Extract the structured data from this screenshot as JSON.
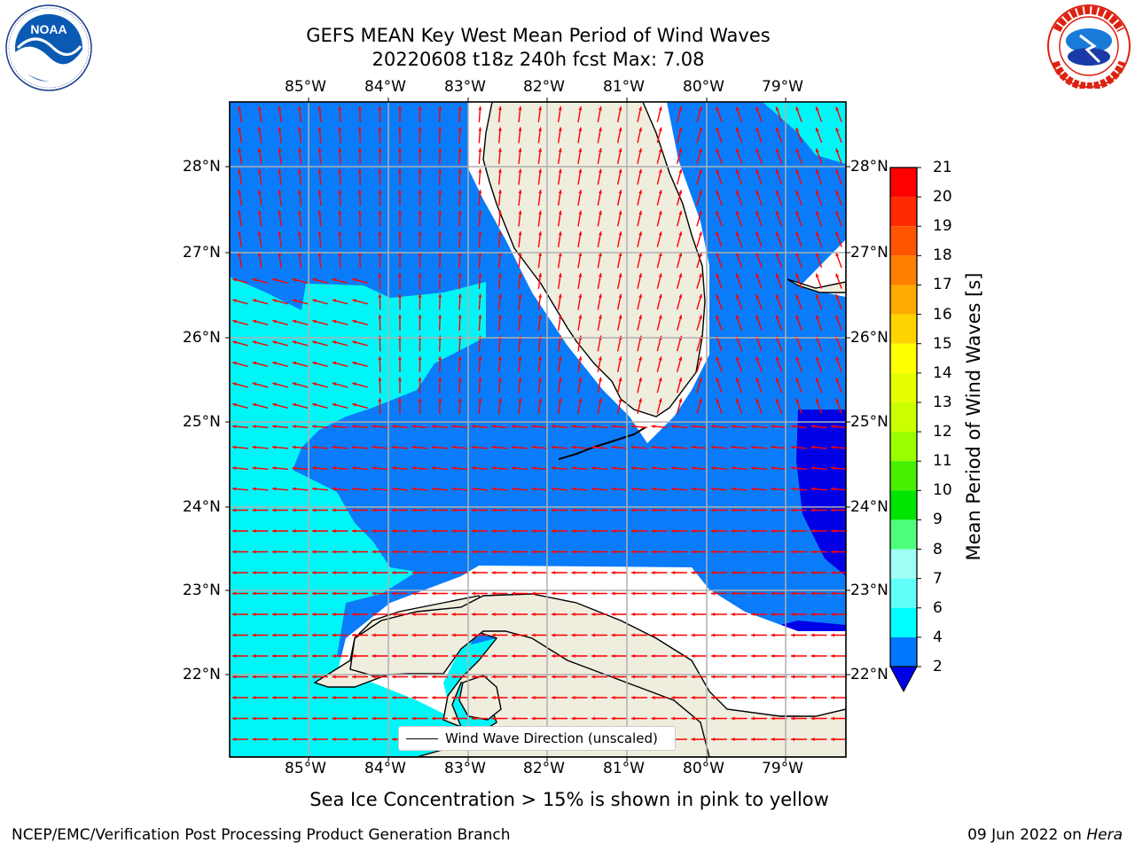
{
  "title": {
    "line1": "GEFS MEAN Key West Mean Period of Wind Waves",
    "line2": "20220608 t18z 240h fcst   Max: 7.08"
  },
  "logos": {
    "left": {
      "name": "NOAA",
      "ring_text": "NATIONAL OCEANIC AND ATMOSPHERIC ADMINISTRATION · U.S. DEPARTMENT OF COMMERCE"
    },
    "right": {
      "name": "NATIONAL WEATHER SERVICE"
    }
  },
  "map": {
    "lon_labels": [
      "85°W",
      "84°W",
      "83°W",
      "82°W",
      "81°W",
      "80°W",
      "79°W"
    ],
    "lat_labels": [
      "28°N",
      "27°N",
      "26°N",
      "25°N",
      "24°N",
      "23°N",
      "22°N"
    ],
    "legend_label": "Wind Wave Direction (unscaled)",
    "colors": {
      "ocean_2_4": "#0a7cf9",
      "ocean_4_6": "#00f6f6",
      "ocean_lt_2": "#0000e6",
      "land": "#efedde",
      "grid": "#b0b0b0",
      "arrow": "#ff0000"
    }
  },
  "colorbar": {
    "title": "Mean Period of Wind Waves [s]",
    "ticks": [
      "21",
      "20",
      "19",
      "18",
      "17",
      "16",
      "15",
      "14",
      "13",
      "12",
      "11",
      "10",
      "9",
      "8",
      "7",
      "6",
      "4",
      "2"
    ],
    "colors": [
      "#ff0000",
      "#ff2a00",
      "#ff5500",
      "#ff8000",
      "#ffaa00",
      "#ffd400",
      "#ffff00",
      "#e5ff00",
      "#ccff00",
      "#99ff00",
      "#48f000",
      "#00e600",
      "#4dff7a",
      "#a0fff4",
      "#60fff8",
      "#00ffff",
      "#0077ff"
    ],
    "extend_color": "#0000e6"
  },
  "note": "Sea Ice Concentration > 15% is shown in pink to yellow",
  "footer": {
    "left": "NCEP/EMC/Verification Post Processing Product Generation Branch",
    "right_date": "09 Jun 2022 on",
    "right_host": "Hera"
  }
}
